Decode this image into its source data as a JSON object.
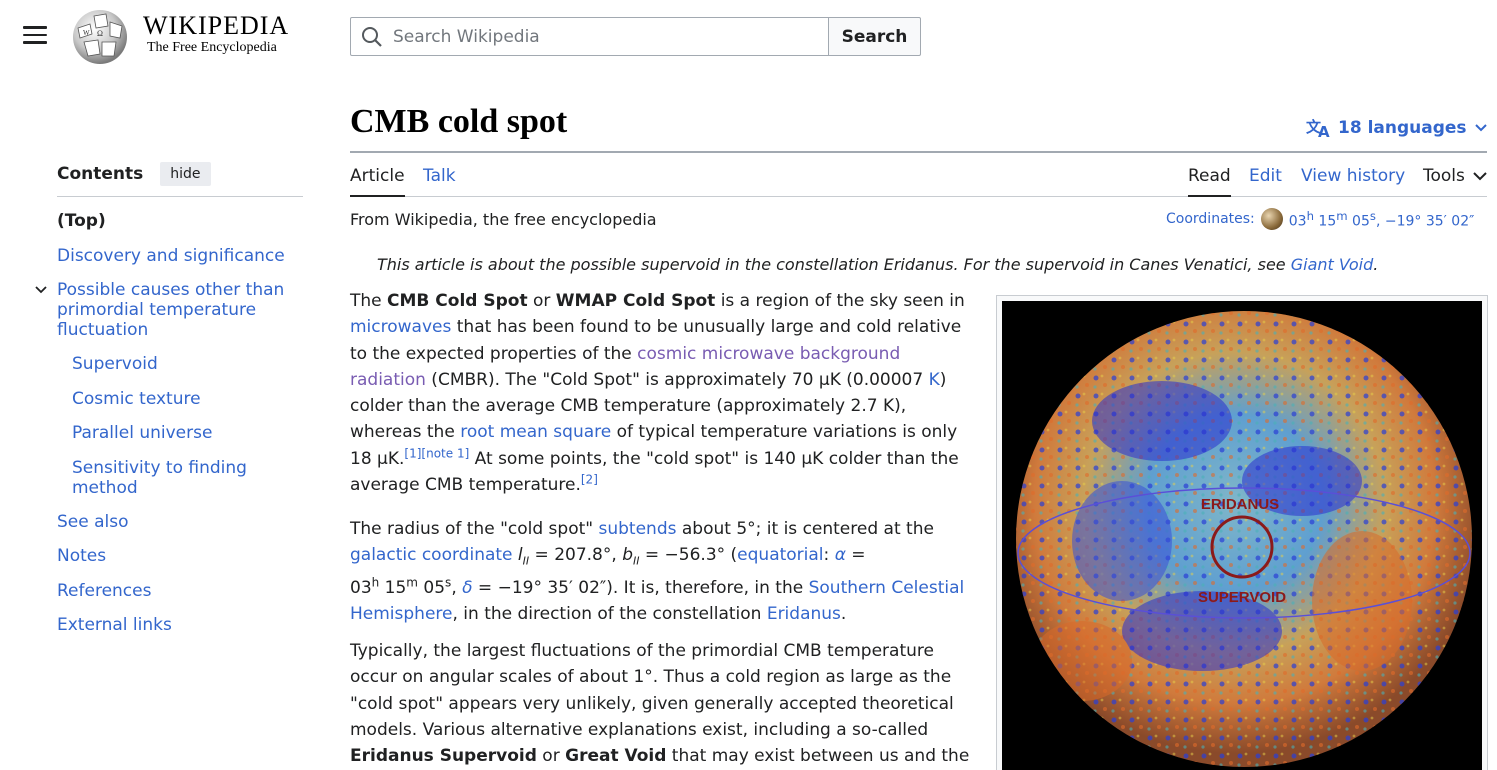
{
  "header": {
    "wordmark_main": "WIKIPEDIA",
    "wordmark_tagline": "The Free Encyclopedia",
    "search_placeholder": "Search Wikipedia",
    "search_button": "Search"
  },
  "page": {
    "title": "CMB cold spot",
    "languages": "18 languages",
    "tabs": {
      "article": "Article",
      "talk": "Talk",
      "read": "Read",
      "edit": "Edit",
      "history": "View history",
      "tools": "Tools"
    },
    "from": "From Wikipedia, the free encyclopedia",
    "coords_label": "Coordinates:",
    "coords_value": "03h 15m 05s, −19° 35′ 02″",
    "hatnote_pre": "This article is about the possible supervoid in the constellation Eridanus. For the supervoid in Canes Venatici, see ",
    "hatnote_link": "Giant Void",
    "hatnote_post": "."
  },
  "toc": {
    "title": "Contents",
    "hide": "hide",
    "items": [
      "(Top)",
      "Discovery and significance",
      "Possible causes other than primordial temperature fluctuation",
      "Supervoid",
      "Cosmic texture",
      "Parallel universe",
      "Sensitivity to finding method",
      "See also",
      "Notes",
      "References",
      "External links"
    ]
  },
  "image": {
    "label_top": "ERIDANUS",
    "label_bottom": "SUPERVOID"
  },
  "colors": {
    "link": "#3366cc",
    "visited": "#795cb2",
    "text": "#202122",
    "border": "#a2a9b1"
  }
}
